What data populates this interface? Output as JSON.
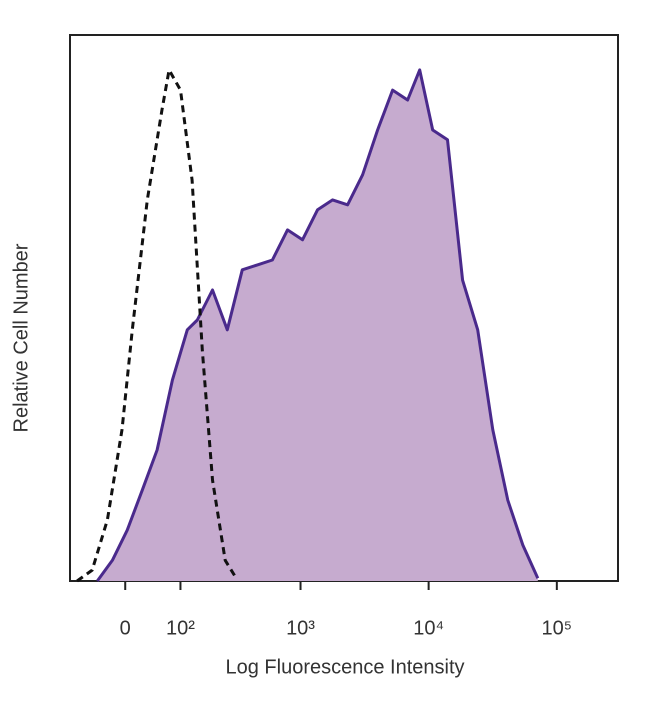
{
  "chart_data": {
    "type": "histogram-overlay",
    "xlabel": "Log Fluorescence Intensity",
    "ylabel": "Relative Cell Number",
    "xscale": "biexponential",
    "xlim": [
      -100,
      300000
    ],
    "xticks": [
      0,
      {
        "value": 100,
        "label": "10²"
      },
      {
        "value": 1000,
        "label": "10³"
      },
      {
        "value": 10000,
        "label": "10⁴"
      },
      {
        "value": 100000,
        "label": "10⁵"
      }
    ],
    "ylim": [
      0,
      100
    ],
    "series": [
      {
        "color": "#4a2a8c",
        "fill": "#c6abcf",
        "style": "solid",
        "x": [
          -45,
          -20,
          3,
          27,
          52,
          82,
          117,
          145,
          197,
          262,
          347,
          458,
          601,
          790,
          1036,
          1359,
          1781,
          2332,
          3053,
          3999,
          5237,
          6855,
          8514,
          10750,
          14040,
          18400,
          24160,
          31650,
          41450,
          54300,
          71100
        ],
        "values": [
          0,
          3.8,
          9.3,
          16.7,
          24,
          36.8,
          46,
          47.8,
          53.3,
          46,
          57,
          57.9,
          58.8,
          64.3,
          62.5,
          68,
          69.8,
          68.9,
          74.4,
          82.6,
          89.9,
          88.1,
          93.6,
          82.6,
          80.8,
          55.1,
          46,
          27.7,
          14.8,
          6.6,
          0.5
        ]
      },
      {
        "color": "#111111",
        "style": "dashed",
        "x": [
          -84,
          -54,
          -28,
          -5,
          11,
          35,
          61,
          75,
          100,
          130,
          161,
          197,
          252,
          310
        ],
        "values": [
          0,
          2,
          11.2,
          27.7,
          46,
          69.8,
          86.3,
          93.6,
          89.9,
          73.4,
          42.3,
          18.5,
          3.8,
          0.5
        ]
      }
    ]
  }
}
